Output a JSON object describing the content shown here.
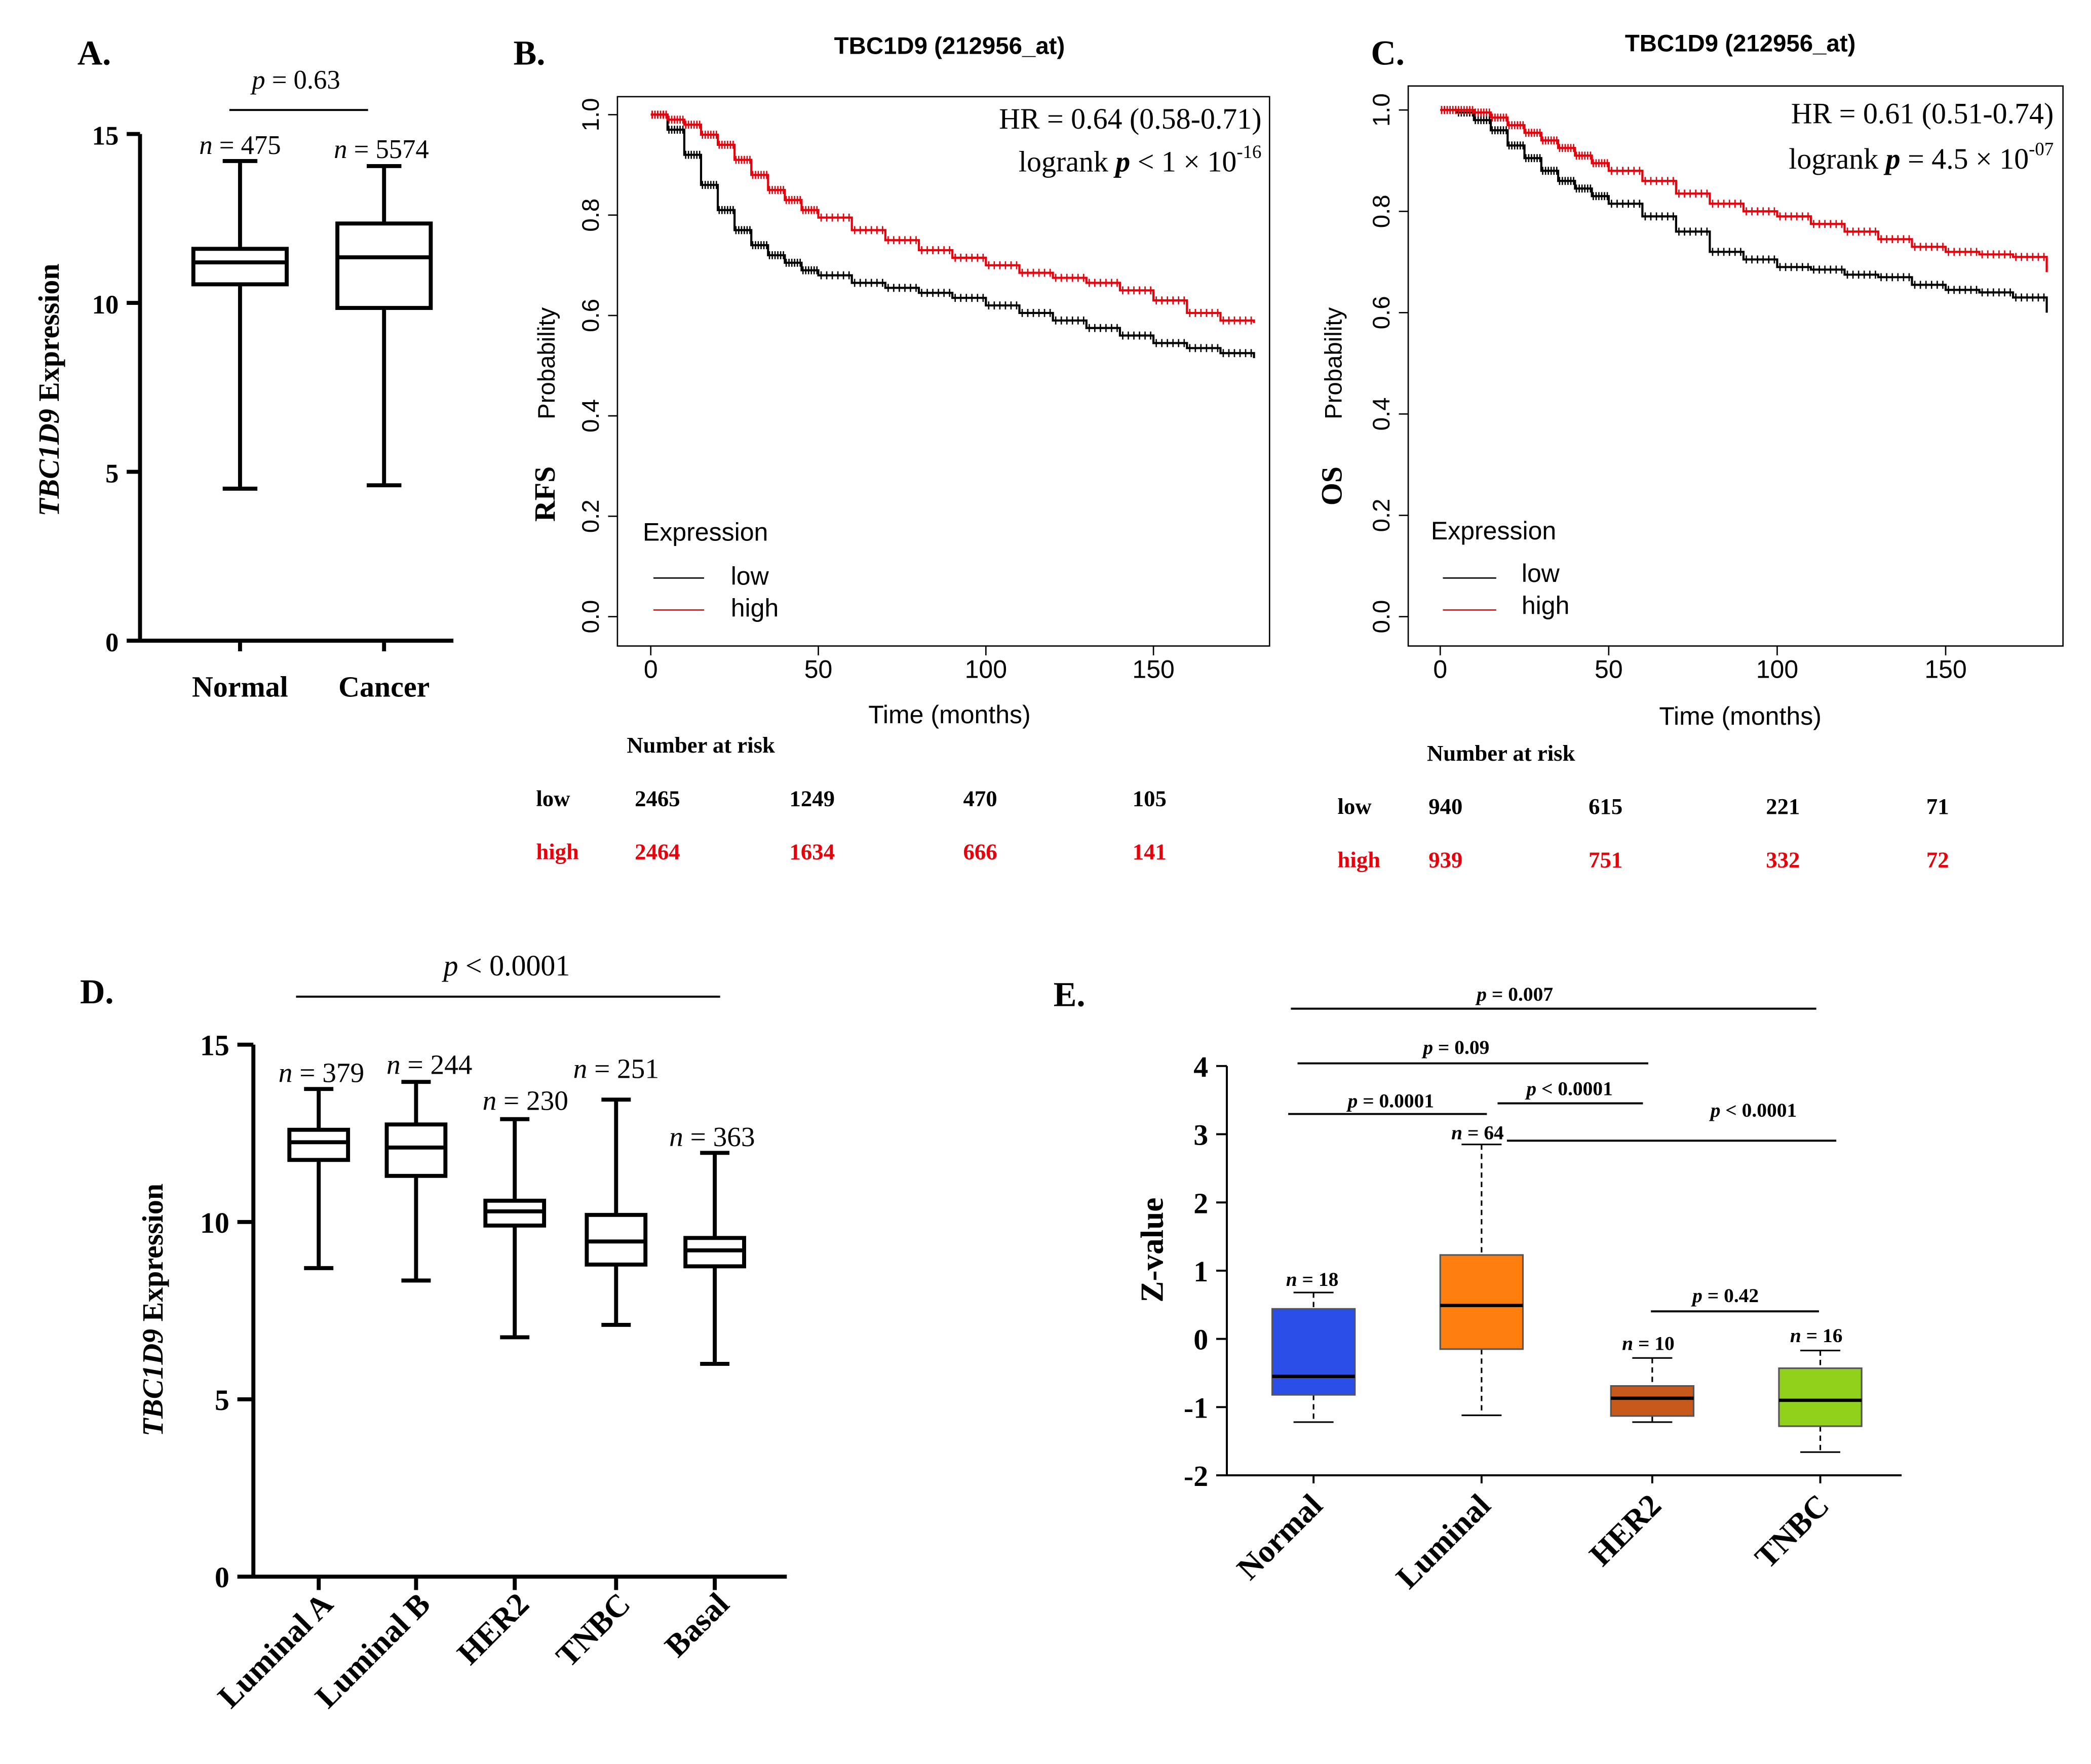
{
  "colors": {
    "black": "#000000",
    "red": "#e8000b"
  },
  "panels": {
    "a": {
      "label": "A.",
      "p_var": "p",
      "p_rest": " = 0.63",
      "ylabel_gene": "TBC1D9",
      "ylabel_rest": " Expression"
    },
    "b": {
      "label": "B.",
      "title": "TBC1D9 (212956_at)",
      "hr": "HR = 0.64 (0.58-0.71)",
      "logrank_word": "logrank ",
      "logrank_p": "p",
      "logrank_op": " < ",
      "logrank_base": "1 × 10",
      "logrank_exp": "-16",
      "ylabel": "Probability",
      "endpoint": "RFS",
      "xlabel": "Time (months)",
      "legend_title": "Expression",
      "legend_low": "low",
      "legend_high": "high",
      "risk_title": "Number at risk",
      "risk_low_label": "low",
      "risk_high_label": "high"
    },
    "c": {
      "label": "C.",
      "title": "TBC1D9 (212956_at)",
      "hr": "HR = 0.61 (0.51-0.74)",
      "logrank_word": "logrank ",
      "logrank_p": "p",
      "logrank_op": " = ",
      "logrank_base": "4.5 × 10",
      "logrank_exp": "-07",
      "ylabel": "Probability",
      "endpoint": "OS",
      "xlabel": "Time (months)",
      "legend_title": "Expression",
      "legend_low": "low",
      "legend_high": "high",
      "risk_title": "Number at risk",
      "risk_low_label": "low",
      "risk_high_label": "high"
    },
    "d": {
      "label": "D.",
      "p_var": "p",
      "p_rest": " < 0.0001",
      "ylabel_gene": "TBC1D9",
      "ylabel_rest": " Expression"
    },
    "e": {
      "label": "E.",
      "ylabel": "Z-value"
    }
  },
  "chart_data": [
    {
      "id": "A",
      "type": "box",
      "ylabel": "TBC1D9 Expression",
      "ylim": [
        0,
        15
      ],
      "yticks": [
        "0",
        "5",
        "10",
        "15"
      ],
      "categories": [
        "Normal",
        "Cancer"
      ],
      "n_labels": [
        "= 475",
        "= 5574"
      ],
      "boxes": [
        {
          "min": 4.5,
          "q1": 10.55,
          "median": 11.2,
          "q3": 11.6,
          "max": 14.2
        },
        {
          "min": 4.6,
          "q1": 9.85,
          "median": 11.35,
          "q3": 12.35,
          "max": 14.05
        }
      ],
      "annotation": "p = 0.63"
    },
    {
      "id": "B",
      "type": "line",
      "title": "TBC1D9 (212956_at)",
      "xlabel": "Time (months)",
      "ylabel": "Probability",
      "xlim": [
        0,
        180
      ],
      "ylim": [
        0,
        1
      ],
      "xticks": [
        "0",
        "50",
        "100",
        "150"
      ],
      "yticks": [
        "0.0",
        "0.2",
        "0.4",
        "0.6",
        "0.8",
        "1.0"
      ],
      "series": [
        {
          "name": "low",
          "x": [
            0,
            5,
            10,
            15,
            20,
            25,
            30,
            35,
            40,
            45,
            50,
            60,
            70,
            80,
            90,
            100,
            110,
            120,
            130,
            140,
            150,
            160,
            170,
            180
          ],
          "y": [
            1.0,
            0.97,
            0.92,
            0.86,
            0.81,
            0.77,
            0.74,
            0.72,
            0.705,
            0.69,
            0.68,
            0.665,
            0.655,
            0.645,
            0.635,
            0.62,
            0.605,
            0.59,
            0.575,
            0.56,
            0.545,
            0.535,
            0.525,
            0.515
          ]
        },
        {
          "name": "high",
          "x": [
            0,
            5,
            10,
            15,
            20,
            25,
            30,
            35,
            40,
            45,
            50,
            60,
            70,
            80,
            90,
            100,
            110,
            120,
            130,
            140,
            150,
            160,
            170,
            180
          ],
          "y": [
            1.0,
            0.99,
            0.98,
            0.96,
            0.94,
            0.91,
            0.88,
            0.85,
            0.83,
            0.81,
            0.795,
            0.77,
            0.75,
            0.73,
            0.715,
            0.7,
            0.685,
            0.675,
            0.665,
            0.65,
            0.63,
            0.605,
            0.59,
            0.585
          ]
        }
      ],
      "annotations": [
        "HR = 0.64 (0.58-0.71)",
        "logrank p < 1 × 10-16"
      ],
      "risk_table": {
        "times": [
          "0",
          "50",
          "100",
          "150"
        ],
        "low": [
          "2465",
          "1249",
          "470",
          "105"
        ],
        "high": [
          "2464",
          "1634",
          "666",
          "141"
        ]
      }
    },
    {
      "id": "C",
      "type": "line",
      "title": "TBC1D9 (212956_at)",
      "xlabel": "Time (months)",
      "ylabel": "Probability",
      "xlim": [
        0,
        180
      ],
      "ylim": [
        0,
        1
      ],
      "xticks": [
        "0",
        "50",
        "100",
        "150"
      ],
      "yticks": [
        "0.0",
        "0.2",
        "0.4",
        "0.6",
        "0.8",
        "1.0"
      ],
      "series": [
        {
          "name": "low",
          "x": [
            0,
            5,
            10,
            15,
            20,
            25,
            30,
            35,
            40,
            45,
            50,
            60,
            70,
            80,
            90,
            100,
            110,
            120,
            130,
            140,
            150,
            160,
            170,
            180
          ],
          "y": [
            1.0,
            0.995,
            0.98,
            0.96,
            0.93,
            0.905,
            0.88,
            0.86,
            0.845,
            0.83,
            0.815,
            0.79,
            0.76,
            0.72,
            0.705,
            0.69,
            0.685,
            0.675,
            0.67,
            0.655,
            0.645,
            0.64,
            0.63,
            0.6
          ]
        },
        {
          "name": "high",
          "x": [
            0,
            5,
            10,
            15,
            20,
            25,
            30,
            35,
            40,
            45,
            50,
            60,
            70,
            80,
            90,
            100,
            110,
            120,
            130,
            140,
            150,
            160,
            170,
            180
          ],
          "y": [
            1.0,
            1.0,
            0.995,
            0.985,
            0.97,
            0.955,
            0.94,
            0.925,
            0.91,
            0.895,
            0.88,
            0.86,
            0.835,
            0.815,
            0.8,
            0.79,
            0.775,
            0.76,
            0.745,
            0.73,
            0.72,
            0.715,
            0.71,
            0.68
          ]
        }
      ],
      "annotations": [
        "HR = 0.61 (0.51-0.74)",
        "logrank p = 4.5 × 10-07"
      ],
      "risk_table": {
        "times": [
          "0",
          "50",
          "100",
          "150"
        ],
        "low": [
          "940",
          "615",
          "221",
          "71"
        ],
        "high": [
          "939",
          "751",
          "332",
          "72"
        ]
      }
    },
    {
      "id": "D",
      "type": "box",
      "ylabel": "TBC1D9 Expression",
      "ylim": [
        0,
        15
      ],
      "yticks": [
        "0",
        "5",
        "10",
        "15"
      ],
      "categories": [
        "Luminal A",
        "Luminal B",
        "HER2",
        "TNBC",
        "Basal"
      ],
      "n_labels": [
        "= 379",
        "= 244",
        "= 230",
        "= 251",
        "= 363"
      ],
      "boxes": [
        {
          "min": 8.7,
          "q1": 11.75,
          "median": 12.25,
          "q3": 12.6,
          "max": 13.75
        },
        {
          "min": 8.35,
          "q1": 11.3,
          "median": 12.1,
          "q3": 12.75,
          "max": 13.95
        },
        {
          "min": 6.75,
          "q1": 9.9,
          "median": 10.3,
          "q3": 10.6,
          "max": 12.9
        },
        {
          "min": 7.1,
          "q1": 8.8,
          "median": 9.45,
          "q3": 10.2,
          "max": 13.45
        },
        {
          "min": 6.0,
          "q1": 8.75,
          "median": 9.2,
          "q3": 9.55,
          "max": 11.95
        }
      ],
      "annotation": "p < 0.0001"
    },
    {
      "id": "E",
      "type": "box",
      "ylabel": "Z-value",
      "ylim": [
        -2,
        4
      ],
      "yticks": [
        "-2",
        "-1",
        "0",
        "1",
        "2",
        "3",
        "4"
      ],
      "categories": [
        "Normal",
        "Luminal",
        "HER2",
        "TNBC"
      ],
      "n_labels": [
        "= 18",
        "= 64",
        "= 10",
        "= 16"
      ],
      "box_colors": [
        "#2b4ee8",
        "#ff7f0e",
        "#c7591a",
        "#8fd11b"
      ],
      "boxes": [
        {
          "min": -1.22,
          "q1": -0.82,
          "median": -0.55,
          "q3": 0.44,
          "max": 0.68
        },
        {
          "min": -1.12,
          "q1": -0.15,
          "median": 0.49,
          "q3": 1.23,
          "max": 2.85
        },
        {
          "min": -1.22,
          "q1": -1.13,
          "median": -0.87,
          "q3": -0.69,
          "max": -0.28
        },
        {
          "min": -1.66,
          "q1": -1.28,
          "median": -0.9,
          "q3": -0.43,
          "max": -0.17
        }
      ],
      "comparisons": [
        {
          "from": 0,
          "to": 3,
          "label": "= 0.007"
        },
        {
          "from": 0,
          "to": 2,
          "label": "= 0.09"
        },
        {
          "from": 0,
          "to": 1,
          "label": "= 0.0001"
        },
        {
          "from": 1,
          "to": 2,
          "label": "< 0.0001"
        },
        {
          "from": 1,
          "to": 3,
          "label": "< 0.0001"
        },
        {
          "from": 2,
          "to": 3,
          "label": "= 0.42"
        }
      ]
    }
  ]
}
